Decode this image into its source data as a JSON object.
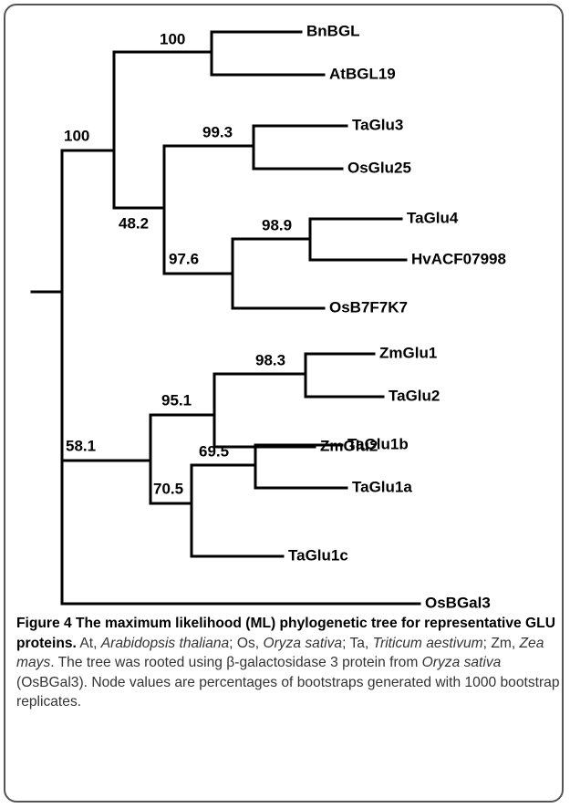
{
  "tree": {
    "leaves": [
      "BnBGL",
      "AtBGL19",
      "TaGlu3",
      "OsGlu25",
      "TaGlu4",
      "HvACF07998",
      "OsB7F7K7",
      "ZmGlu1",
      "TaGlu2",
      "ZmGlu2",
      "TaGlu1b",
      "TaGlu1a",
      "TaGlu1c",
      "OsBGal3"
    ],
    "nodes": [
      "100",
      "100",
      "48.2",
      "99.3",
      "97.6",
      "98.9",
      "95.1",
      "98.3",
      "58.1",
      "70.5",
      "69.5"
    ]
  },
  "caption": {
    "label": "Figure 4",
    "title": "The maximum likelihood (ML) phylogenetic tree for representative GLU proteins.",
    "body": [
      " At, ",
      "Arabidopsis thaliana",
      "; Os, ",
      "Oryza sativa",
      "; Ta, ",
      "Triticum aestivum",
      "; Zm, ",
      "Zea mays",
      ". The tree was rooted using β-galactosidase 3 protein from ",
      "Oryza sativa",
      " (OsBGal3). Node values are percentages of bootstraps generated with 1000 bootstrap replicates."
    ]
  }
}
